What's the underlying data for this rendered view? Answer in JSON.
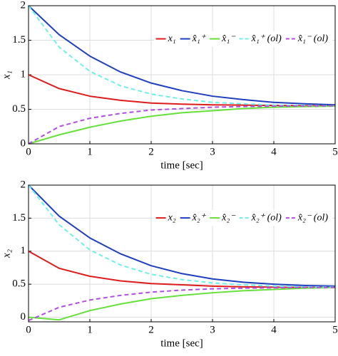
{
  "chart_data": [
    {
      "type": "line",
      "xlabel": "time  [sec]",
      "ylabel": "x₁",
      "x": [
        0,
        0.5,
        1,
        1.5,
        2,
        2.5,
        3,
        3.5,
        4,
        4.5,
        5
      ],
      "xlim": [
        0,
        5
      ],
      "xticks": [
        0,
        1,
        2,
        3,
        4,
        5
      ],
      "ylim": [
        0,
        2
      ],
      "yticks": [
        0,
        0.5,
        1,
        1.5,
        2
      ],
      "grid": true,
      "legend": "upper right",
      "series": [
        {
          "name": "x₁",
          "color": "#dd1c1c",
          "linestyle": "solid",
          "values": [
            1,
            0.8,
            0.69,
            0.63,
            0.59,
            0.575,
            0.565,
            0.56,
            0.555,
            0.553,
            0.552
          ]
        },
        {
          "name": "x̂₁⁺",
          "color": "#1f3fbf",
          "linestyle": "solid",
          "values": [
            2,
            1.58,
            1.27,
            1.04,
            0.88,
            0.77,
            0.69,
            0.64,
            0.6,
            0.58,
            0.565
          ]
        },
        {
          "name": "x̂₁⁻",
          "color": "#66e03a",
          "linestyle": "solid",
          "values": [
            0,
            0.13,
            0.24,
            0.33,
            0.4,
            0.45,
            0.48,
            0.51,
            0.53,
            0.54,
            0.545
          ]
        },
        {
          "name": "x̂₁⁺ (ol)",
          "color": "#6ef0e6",
          "linestyle": "dashed",
          "values": [
            2,
            1.4,
            1.05,
            0.84,
            0.72,
            0.65,
            0.6,
            0.58,
            0.56,
            0.555,
            0.55
          ]
        },
        {
          "name": "x̂₁⁻ (ol)",
          "color": "#b34fe0",
          "linestyle": "dashed",
          "values": [
            0,
            0.25,
            0.37,
            0.44,
            0.49,
            0.51,
            0.53,
            0.54,
            0.545,
            0.548,
            0.55
          ]
        }
      ]
    },
    {
      "type": "line",
      "xlabel": "time  [sec]",
      "ylabel": "x₂",
      "x": [
        0,
        0.5,
        1,
        1.5,
        2,
        2.5,
        3,
        3.5,
        4,
        4.5,
        5
      ],
      "xlim": [
        0,
        5
      ],
      "xticks": [
        0,
        1,
        2,
        3,
        4,
        5
      ],
      "ylim": [
        -0.07,
        2
      ],
      "yticks": [
        0,
        0.5,
        1,
        1.5,
        2
      ],
      "grid": true,
      "legend": "upper right",
      "series": [
        {
          "name": "x₂",
          "color": "#dd1c1c",
          "linestyle": "solid",
          "values": [
            1,
            0.74,
            0.62,
            0.55,
            0.51,
            0.49,
            0.47,
            0.46,
            0.455,
            0.452,
            0.45
          ]
        },
        {
          "name": "x̂₂⁺",
          "color": "#1f3fbf",
          "linestyle": "solid",
          "values": [
            2,
            1.53,
            1.2,
            0.96,
            0.78,
            0.66,
            0.58,
            0.53,
            0.5,
            0.48,
            0.47
          ]
        },
        {
          "name": "x̂₂⁻",
          "color": "#66e03a",
          "linestyle": "solid",
          "values": [
            0,
            -0.04,
            0.1,
            0.2,
            0.28,
            0.33,
            0.37,
            0.4,
            0.42,
            0.44,
            0.45
          ]
        },
        {
          "name": "x̂₂⁺ (ol)",
          "color": "#6ef0e6",
          "linestyle": "dashed",
          "values": [
            2,
            1.4,
            1.02,
            0.79,
            0.65,
            0.57,
            0.52,
            0.49,
            0.47,
            0.46,
            0.455
          ]
        },
        {
          "name": "x̂₂⁻ (ol)",
          "color": "#b34fe0",
          "linestyle": "dashed",
          "values": [
            -0.05,
            0.15,
            0.26,
            0.33,
            0.38,
            0.41,
            0.43,
            0.44,
            0.445,
            0.45,
            0.45
          ]
        }
      ]
    }
  ]
}
